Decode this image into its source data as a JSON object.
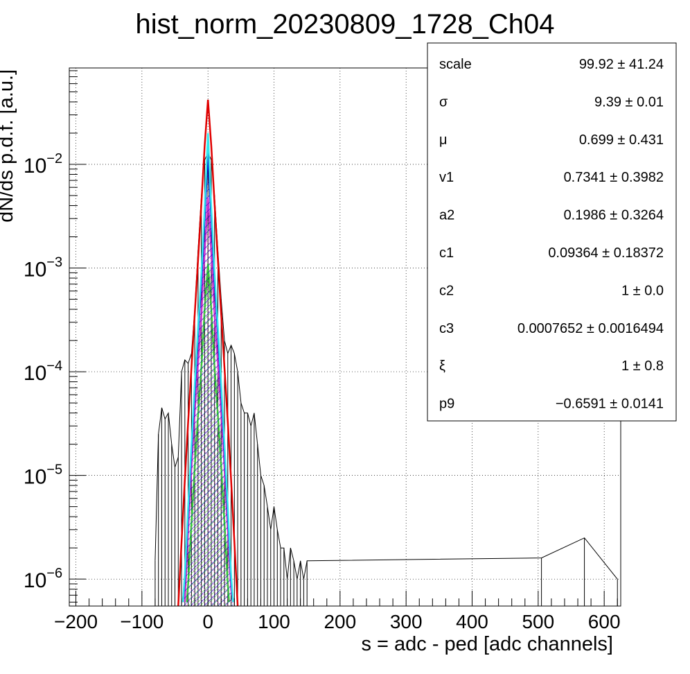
{
  "chart_data": {
    "type": "line",
    "title": "hist_norm_20230809_1728_Ch04",
    "xlabel": "s = adc - ped [adc channels]",
    "ylabel": "dN/ds p.d.f. [a.u.]",
    "x_scale": "linear",
    "y_scale": "log",
    "xlim": [
      -210,
      625
    ],
    "ylim": [
      5.5e-07,
      0.085
    ],
    "grid": true,
    "x_ticks": [
      -200,
      -100,
      0,
      100,
      200,
      300,
      400,
      500,
      600
    ],
    "x_tick_labels": [
      "−200",
      "−100",
      "0",
      "100",
      "200",
      "300",
      "400",
      "500",
      "600"
    ],
    "y_ticks": [
      {
        "value": 0.01,
        "base": "10",
        "exp": "−2"
      },
      {
        "value": 0.001,
        "base": "10",
        "exp": "−3"
      },
      {
        "value": 0.0001,
        "base": "10",
        "exp": "−4"
      },
      {
        "value": 1e-05,
        "base": "10",
        "exp": "−5"
      },
      {
        "value": 1e-06,
        "base": "10",
        "exp": "−6"
      }
    ],
    "series": [
      {
        "color": "#000000",
        "style": "histogram",
        "x": [
          -80,
          -75,
          -70,
          -65,
          -60,
          -55,
          -50,
          -45,
          -40,
          -35,
          -30,
          -25,
          -20,
          -15,
          -10,
          -5,
          0,
          5,
          10,
          15,
          20,
          25,
          30,
          35,
          40,
          45,
          50,
          55,
          60,
          65,
          70,
          75,
          80,
          85,
          90,
          95,
          100,
          105,
          110,
          115,
          120,
          125,
          130,
          135,
          140,
          145,
          150,
          505,
          570,
          620
        ],
        "y": [
          1.5e-06,
          2.5e-05,
          4.5e-05,
          3.5e-05,
          4e-05,
          2e-05,
          1.2e-05,
          1.5e-05,
          0.0001,
          0.00013,
          0.00012,
          0.00015,
          0.0004,
          0.0015,
          0.005,
          0.011,
          0.013,
          0.011,
          0.005,
          0.0015,
          0.0005,
          0.0002,
          0.00015,
          0.00018,
          0.00015,
          0.0001,
          5e-05,
          4e-05,
          4e-05,
          3e-05,
          4e-05,
          2e-05,
          1e-05,
          8e-06,
          5e-06,
          3e-06,
          5e-06,
          3e-06,
          2e-06,
          2e-06,
          1e-06,
          2e-06,
          1.5e-06,
          1e-06,
          1.5e-06,
          1e-06,
          1.5e-06,
          1.6e-06,
          2.5e-06,
          1e-06
        ]
      },
      {
        "color": "#e00000",
        "style": "curve",
        "x": [
          -45,
          -40,
          -35,
          -30,
          -25,
          -20,
          -15,
          -10,
          -5,
          0,
          5,
          10,
          15,
          20,
          25,
          30,
          35,
          40,
          45
        ],
        "y": [
          5.5e-07,
          2.3e-06,
          9e-06,
          3.3e-05,
          0.00011,
          0.00036,
          0.0012,
          0.0042,
          0.015,
          0.042,
          0.015,
          0.0042,
          0.0012,
          0.00036,
          0.00011,
          3.3e-05,
          9e-06,
          2.3e-06,
          5.5e-07
        ]
      },
      {
        "color": "#33e8ee",
        "style": "curve",
        "x": [
          -38,
          -35,
          -30,
          -25,
          -20,
          -15,
          -10,
          -5,
          0,
          5,
          10,
          15,
          20,
          25,
          30,
          35,
          38
        ],
        "y": [
          6e-07,
          1.1e-06,
          5e-06,
          2e-05,
          7.5e-05,
          0.00027,
          0.0009,
          0.0038,
          0.02,
          0.0038,
          0.0009,
          0.00027,
          7.5e-05,
          2e-05,
          5e-06,
          1.1e-06,
          6e-07
        ]
      },
      {
        "color": "#0000cc",
        "style": "hatched",
        "x": [
          -38,
          -35,
          -30,
          -25,
          -20,
          -15,
          -10,
          -5,
          0,
          5,
          10,
          15,
          20,
          25,
          30,
          35,
          38
        ],
        "y": [
          6e-07,
          1e-06,
          4.5e-06,
          1.8e-05,
          6.5e-05,
          0.00023,
          0.00075,
          0.003,
          0.0135,
          0.003,
          0.00075,
          0.00023,
          6.5e-05,
          1.8e-05,
          4.5e-06,
          1e-06,
          6e-07
        ]
      },
      {
        "color": "#cc33cc",
        "style": "hatched",
        "x": [
          -35,
          -30,
          -25,
          -20,
          -15,
          -10,
          -5,
          0,
          5,
          10,
          15,
          20,
          25,
          30,
          35,
          38
        ],
        "y": [
          6e-07,
          3e-06,
          1.2e-05,
          4e-05,
          0.00012,
          0.00035,
          0.0014,
          0.0048,
          0.0014,
          0.00035,
          0.00012,
          4e-05,
          1.2e-05,
          3e-06,
          8e-07,
          6e-07
        ]
      },
      {
        "color": "#33cc33",
        "style": "hatched",
        "x": [
          -32,
          -30,
          -25,
          -20,
          -15,
          -10,
          -5,
          0,
          5,
          10,
          15,
          20,
          25,
          30,
          32
        ],
        "y": [
          6e-07,
          9e-07,
          3.5e-06,
          1.2e-05,
          3.8e-05,
          0.00011,
          0.0004,
          0.0011,
          0.0004,
          0.00011,
          3.8e-05,
          1.2e-05,
          3.5e-06,
          9e-07,
          6e-07
        ]
      }
    ]
  },
  "stats": [
    {
      "name": "scale",
      "value": "99.92 ± 41.24"
    },
    {
      "name": "σ",
      "value": "9.39 ± 0.01"
    },
    {
      "name": "μ",
      "value": "0.699 ± 0.431"
    },
    {
      "name": "v1",
      "value": "0.7341 ± 0.3982"
    },
    {
      "name": "a2",
      "value": "0.1986 ± 0.3264"
    },
    {
      "name": "c1",
      "value": "0.09364 ± 0.18372"
    },
    {
      "name": "c2",
      "value": "1 ± 0.0"
    },
    {
      "name": "c3",
      "value": "0.0007652 ± 0.0016494"
    },
    {
      "name": "ξ",
      "value": "1 ± 0.8"
    },
    {
      "name": "p9",
      "value": "−0.6591 ± 0.0141"
    }
  ]
}
